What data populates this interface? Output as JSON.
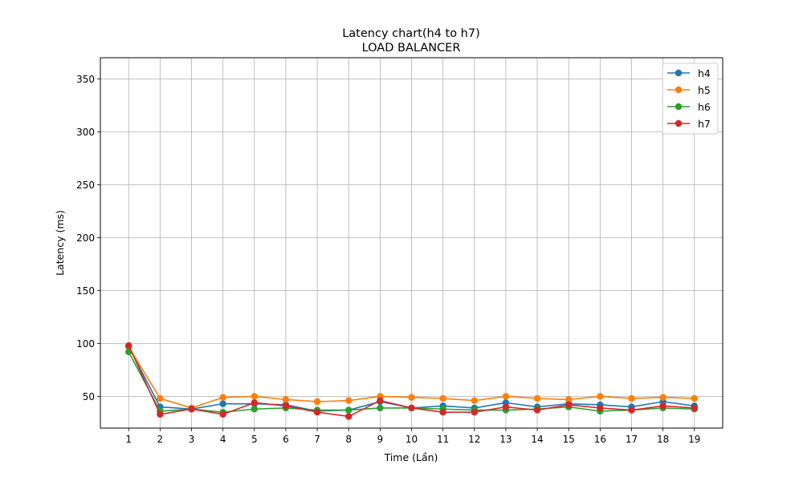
{
  "chart_data": {
    "type": "line",
    "title": "Latency chart(h4 to h7)",
    "subtitle": "LOAD BALANCER",
    "xlabel": "Time (Lần)",
    "ylabel": "Latency (ms)",
    "x": [
      1,
      2,
      3,
      4,
      5,
      6,
      7,
      8,
      9,
      10,
      11,
      12,
      13,
      14,
      15,
      16,
      17,
      18,
      19
    ],
    "xlim": [
      0.1,
      19.9
    ],
    "ylim": [
      20,
      370
    ],
    "yticks": [
      50,
      100,
      150,
      200,
      250,
      300,
      350
    ],
    "grid": true,
    "legend": "top-right",
    "series": [
      {
        "name": "h4",
        "color": "#1f77b4",
        "values": [
          97,
          40,
          38,
          43,
          43,
          42,
          36,
          37,
          45,
          39,
          41,
          39,
          44,
          40,
          43,
          42,
          40,
          45,
          41
        ]
      },
      {
        "name": "h5",
        "color": "#ff7f0e",
        "values": [
          97,
          48,
          39,
          49,
          50,
          47,
          45,
          46,
          50,
          49,
          48,
          46,
          50,
          48,
          47,
          50,
          48,
          49,
          48
        ]
      },
      {
        "name": "h6",
        "color": "#2ca02c",
        "values": [
          92,
          36,
          38,
          35,
          38,
          39,
          37,
          37,
          39,
          39,
          38,
          37,
          37,
          38,
          40,
          36,
          37,
          39,
          38
        ]
      },
      {
        "name": "h7",
        "color": "#d62728",
        "values": [
          98,
          33,
          38,
          33,
          44,
          41,
          35,
          31,
          46,
          39,
          35,
          35,
          40,
          37,
          42,
          39,
          37,
          41,
          39
        ]
      }
    ]
  }
}
